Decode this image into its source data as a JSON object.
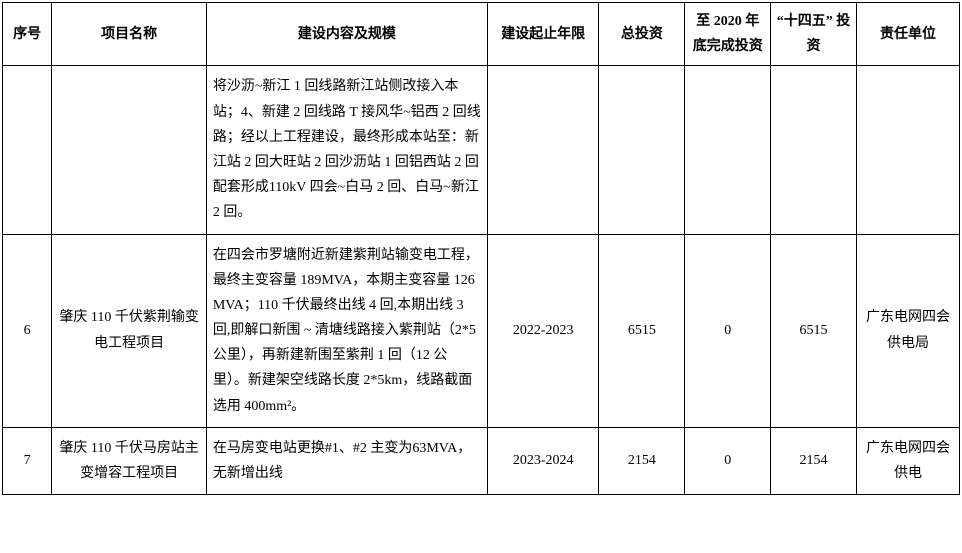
{
  "table": {
    "headers": {
      "seq": "序号",
      "name": "项目名称",
      "content": "建设内容及规模",
      "years": "建设起止年限",
      "totalInvestment": "总投资",
      "completedBy2020": "至 2020 年底完成投资",
      "plan145": "“十四五” 投资",
      "responsible": "责任单位"
    },
    "rows": [
      {
        "seq": "",
        "name": "",
        "content": "将沙沥~新江 1 回线路新江站侧改接入本站；4、新建 2 回线路 T 接风华~铝西 2 回线路；经以上工程建设，最终形成本站至：新江站 2 回大旺站 2 回沙沥站 1 回铝西站 2 回配套形成110kV 四会~白马 2 回、白马~新江 2 回。",
        "years": "",
        "totalInvestment": "",
        "completedBy2020": "",
        "plan145": "",
        "responsible": ""
      },
      {
        "seq": "6",
        "name": "肇庆 110 千伏紫荆输变电工程项目",
        "content": "在四会市罗塘附近新建紫荆站输变电工程，最终主变容量 189MVA，本期主变容量 126MVA；110 千伏最终出线 4 回,本期出线 3 回,即解口新围 ~ 清塘线路接入紫荆站（2*5 公里），再新建新围至紫荆 1 回（12 公里）。新建架空线路长度 2*5km，线路截面选用 400mm²。",
        "years": "2022-2023",
        "totalInvestment": "6515",
        "completedBy2020": "0",
        "plan145": "6515",
        "responsible": "广东电网四会供电局"
      },
      {
        "seq": "7",
        "name": "肇庆 110 千伏马房站主变增容工程项目",
        "content": "在马房变电站更换#1、#2 主变为63MVA，无新增出线",
        "years": "2023-2024",
        "totalInvestment": "2154",
        "completedBy2020": "0",
        "plan145": "2154",
        "responsible": "广东电网四会供电"
      }
    ]
  }
}
